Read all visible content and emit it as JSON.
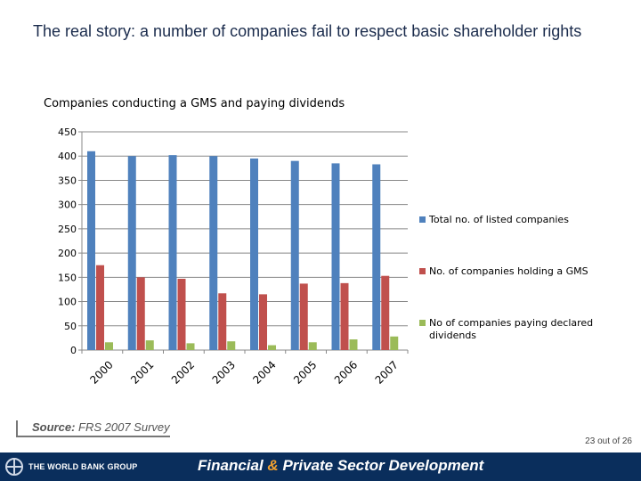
{
  "slide": {
    "title": "The real story: a number of companies fail to respect basic shareholder rights",
    "source_label": "Source:",
    "source_text": "FRS 2007 Survey",
    "page_number": "23 out of 26"
  },
  "footer": {
    "org": "THE WORLD BANK GROUP",
    "tagline_part1": "Financial",
    "tagline_amp": "&",
    "tagline_part2": "Private Sector Development"
  },
  "colors": {
    "series1": "#4f81bd",
    "series2": "#c0504d",
    "series3": "#9bbb59"
  },
  "chart_data": {
    "type": "bar",
    "title": "Companies conducting a GMS and paying dividends",
    "categories": [
      "2000",
      "2001",
      "2002",
      "2003",
      "2004",
      "2005",
      "2006",
      "2007"
    ],
    "series": [
      {
        "name": "Total no. of listed companies",
        "values": [
          410,
          400,
          402,
          400,
          395,
          390,
          385,
          383
        ]
      },
      {
        "name": "No. of companies holding a GMS",
        "values": [
          175,
          150,
          147,
          117,
          115,
          137,
          138,
          153
        ]
      },
      {
        "name": "No of companies paying declared dividends",
        "values": [
          16,
          20,
          14,
          18,
          10,
          16,
          22,
          28
        ]
      }
    ],
    "ylim": [
      0,
      450
    ],
    "yticks": [
      0,
      50,
      100,
      150,
      200,
      250,
      300,
      350,
      400,
      450
    ],
    "xlabel": "",
    "ylabel": "",
    "legend_position": "right"
  }
}
